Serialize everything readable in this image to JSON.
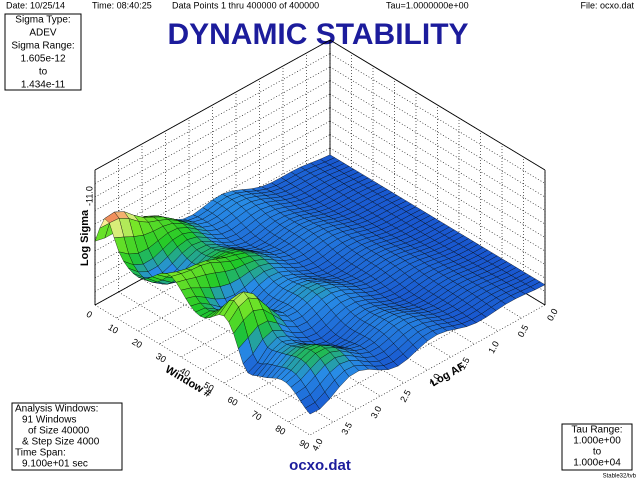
{
  "header": {
    "date": "Date: 10/25/14",
    "time": "Time: 08:40:25",
    "points": "Data Points 1 thru 400000 of 400000",
    "tau": "Tau=1.0000000e+00",
    "file": "File: ocxo.dat"
  },
  "title": "DYNAMIC STABILITY",
  "sigma_box": [
    "Sigma Type:",
    "ADEV",
    "Sigma Range:",
    "1.605e-12",
    "to",
    "1.434e-11"
  ],
  "analysis_box": [
    "Analysis Windows:",
    "91 Windows",
    "of Size 40000",
    "& Step Size 4000",
    "Time Span:",
    "9.100e+01 sec"
  ],
  "tau_box": [
    "Tau Range:",
    "1.000e+00",
    "to",
    "1.000e+04"
  ],
  "footer": "ocxo.dat",
  "credit": "Stable32/tvb",
  "axes": {
    "z_label": "Log Sigma",
    "z_ticks": [
      "-11.0"
    ],
    "window_label": "Window #",
    "window_ticks": [
      "0",
      "10",
      "20",
      "30",
      "40",
      "50",
      "60",
      "70",
      "80",
      "90"
    ],
    "af_label": "Log AF",
    "af_ticks": [
      "0.0",
      "0.5",
      "1.0",
      "1.5",
      "2.0",
      "2.5",
      "3.0",
      "3.5",
      "4.0"
    ]
  }
}
